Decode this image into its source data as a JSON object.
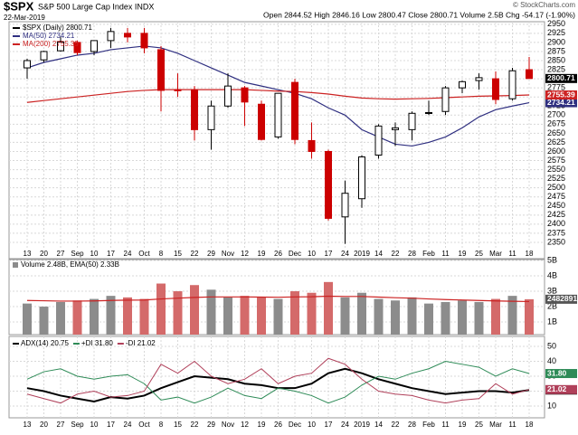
{
  "header": {
    "title": "$SPX",
    "subtitle": "S&P 500 Large Cap Index INDX",
    "date": "22-Mar-2019",
    "source": "© StockCharts.com",
    "quote": "Open 2844.52 High 2846.16 Low 2800.47 Close 2800.71 Volume 2.5B Chg -54.17 (-1.90%)"
  },
  "chart_data": [
    {
      "type": "candlestick",
      "name": "$SPX (Daily) 2800.71",
      "categories": [
        "13",
        "20",
        "27",
        "Sep",
        "10",
        "17",
        "24",
        "Oct",
        "8",
        "15",
        "22",
        "29",
        "Nov",
        "12",
        "19",
        "26",
        "Dec",
        "10",
        "17",
        "24",
        "2019",
        "14",
        "22",
        "28",
        "Feb",
        "11",
        "19",
        "25",
        "Mar",
        "11",
        "18"
      ],
      "open": [
        2830,
        2852,
        2877,
        2900,
        2875,
        2905,
        2925,
        2925,
        2880,
        2770,
        2770,
        2660,
        2725,
        2775,
        2730,
        2640,
        2790,
        2630,
        2600,
        2420,
        2470,
        2590,
        2660,
        2660,
        2705,
        2710,
        2775,
        2795,
        2800,
        2745,
        2825
      ],
      "high": [
        2855,
        2877,
        2915,
        2905,
        2905,
        2940,
        2940,
        2940,
        2890,
        2815,
        2780,
        2740,
        2815,
        2780,
        2740,
        2760,
        2800,
        2680,
        2605,
        2520,
        2590,
        2675,
        2680,
        2710,
        2740,
        2780,
        2795,
        2815,
        2820,
        2830,
        2860
      ],
      "low": [
        2800,
        2845,
        2875,
        2865,
        2865,
        2885,
        2900,
        2870,
        2710,
        2750,
        2630,
        2605,
        2720,
        2670,
        2630,
        2635,
        2620,
        2580,
        2410,
        2346,
        2445,
        2580,
        2615,
        2630,
        2700,
        2700,
        2760,
        2770,
        2730,
        2740,
        2800
      ],
      "close": [
        2850,
        2875,
        2901,
        2872,
        2905,
        2930,
        2915,
        2885,
        2768,
        2767,
        2660,
        2725,
        2780,
        2736,
        2633,
        2760,
        2633,
        2600,
        2416,
        2485,
        2585,
        2670,
        2665,
        2705,
        2707,
        2775,
        2792,
        2803,
        2743,
        2822,
        2800.71
      ],
      "up_color": "#000000",
      "down_color": "#cc0000",
      "series": [
        {
          "name": "MA(50) 2734.21",
          "color": "#2f2f80",
          "values": [
            2830,
            2845,
            2855,
            2865,
            2870,
            2880,
            2885,
            2890,
            2885,
            2870,
            2850,
            2830,
            2810,
            2790,
            2780,
            2770,
            2760,
            2745,
            2720,
            2700,
            2660,
            2640,
            2620,
            2615,
            2625,
            2640,
            2665,
            2695,
            2715,
            2725,
            2734.21
          ]
        },
        {
          "name": "MA(200) 2755.39",
          "color": "#cc2222",
          "values": [
            2735,
            2740,
            2745,
            2750,
            2755,
            2760,
            2765,
            2768,
            2770,
            2770,
            2770,
            2770,
            2770,
            2770,
            2768,
            2766,
            2765,
            2762,
            2758,
            2752,
            2747,
            2745,
            2744,
            2745,
            2746,
            2748,
            2750,
            2752,
            2753,
            2754,
            2755.39
          ]
        }
      ],
      "ylim": [
        2330,
        2957
      ],
      "yticks": [
        2350,
        2375,
        2400,
        2425,
        2450,
        2475,
        2500,
        2525,
        2550,
        2575,
        2600,
        2625,
        2650,
        2675,
        2700,
        2725,
        2750,
        2775,
        2800,
        2825,
        2850,
        2875,
        2900,
        2925,
        2950
      ],
      "grid": true
    },
    {
      "type": "bar",
      "title": "Volume 2.48B, EMA(50) 2.33B",
      "values": [
        2.2,
        2.0,
        2.3,
        2.4,
        2.5,
        2.7,
        2.6,
        2.5,
        3.5,
        3.0,
        3.4,
        3.1,
        2.6,
        2.7,
        2.6,
        2.5,
        3.0,
        2.9,
        3.6,
        2.6,
        2.9,
        2.5,
        2.4,
        2.6,
        2.2,
        2.3,
        2.4,
        2.3,
        2.5,
        2.7,
        2.48
      ],
      "up_color": "#8c8c8c",
      "down_color": "#d46a6a",
      "ema": [
        2.4,
        2.38,
        2.36,
        2.36,
        2.37,
        2.4,
        2.42,
        2.43,
        2.5,
        2.55,
        2.6,
        2.63,
        2.63,
        2.63,
        2.62,
        2.61,
        2.63,
        2.64,
        2.68,
        2.66,
        2.66,
        2.62,
        2.58,
        2.55,
        2.5,
        2.46,
        2.43,
        2.4,
        2.37,
        2.35,
        2.33
      ],
      "ema_color": "#cc2222",
      "last_label": "2482891",
      "ylim": [
        0.18,
        5.06
      ],
      "yticks": [
        {
          "value": 1,
          "label": "1B"
        },
        {
          "value": 2,
          "label": "2B"
        },
        {
          "value": 3,
          "label": "3B"
        },
        {
          "value": 4,
          "label": "4B"
        },
        {
          "value": 5,
          "label": "5B"
        }
      ],
      "grid": true
    },
    {
      "type": "line",
      "categories": [
        "13",
        "20",
        "27",
        "Sep",
        "10",
        "17",
        "24",
        "Oct",
        "8",
        "15",
        "22",
        "29",
        "Nov",
        "12",
        "19",
        "26",
        "Dec",
        "10",
        "17",
        "24",
        "2019",
        "14",
        "22",
        "28",
        "Feb",
        "11",
        "19",
        "25",
        "Mar",
        "11",
        "18"
      ],
      "series": [
        {
          "name": "ADX(14) 20.75",
          "color": "#000000",
          "box_label": "20.75",
          "values": [
            22,
            20,
            17,
            15,
            13,
            16,
            15,
            17,
            22,
            26,
            30,
            29,
            28,
            25,
            24,
            22,
            22,
            25,
            32,
            35,
            32,
            28,
            25,
            22,
            20,
            18,
            19,
            20,
            20,
            19,
            20.75
          ]
        },
        {
          "name": "+DI 31.80",
          "color": "#2e8b57",
          "box_label": "31.80",
          "values": [
            28,
            33,
            35,
            30,
            28,
            30,
            31,
            25,
            14,
            16,
            12,
            16,
            22,
            17,
            15,
            22,
            20,
            17,
            12,
            16,
            24,
            30,
            28,
            32,
            35,
            40,
            38,
            36,
            30,
            35,
            31.8
          ]
        },
        {
          "name": "-DI 21.02",
          "color": "#b0405a",
          "box_label": "21.02",
          "values": [
            18,
            15,
            12,
            18,
            20,
            16,
            17,
            20,
            38,
            32,
            40,
            30,
            25,
            28,
            35,
            25,
            30,
            32,
            42,
            38,
            28,
            20,
            18,
            17,
            14,
            12,
            14,
            15,
            25,
            18,
            21.02
          ]
        }
      ],
      "ylim": [
        3.3,
        56.7
      ],
      "yticks": [
        10,
        20,
        30,
        40,
        50
      ],
      "grid": true
    }
  ]
}
